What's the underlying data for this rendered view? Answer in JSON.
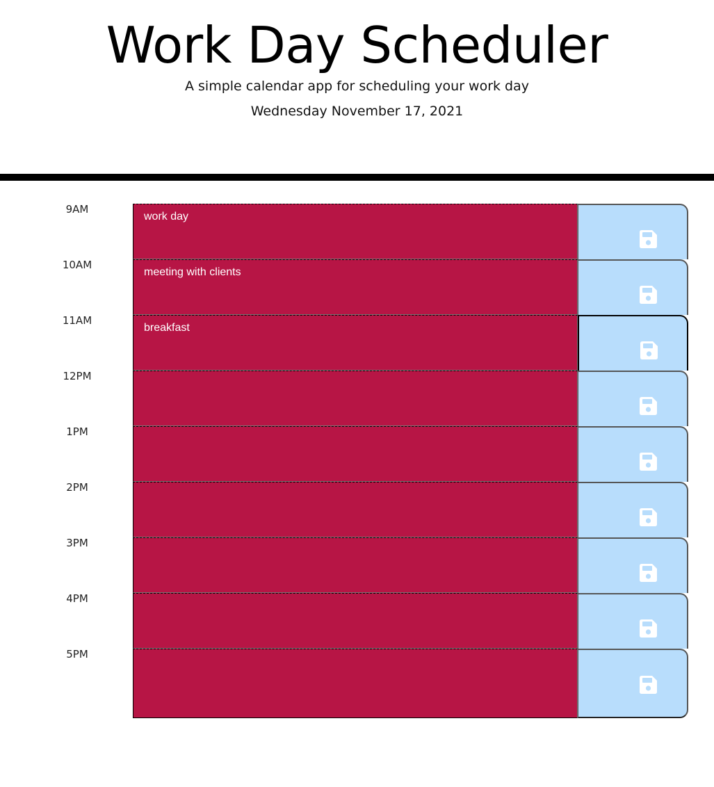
{
  "header": {
    "title": "Work Day Scheduler",
    "subtitle": "A simple calendar app for scheduling your work day",
    "current_day": "Wednesday November 17, 2021"
  },
  "schedule": {
    "blocks": [
      {
        "hour": "9AM",
        "text": "work day"
      },
      {
        "hour": "10AM",
        "text": "meeting with clients"
      },
      {
        "hour": "11AM",
        "text": "breakfast"
      },
      {
        "hour": "12PM",
        "text": ""
      },
      {
        "hour": "1PM",
        "text": ""
      },
      {
        "hour": "2PM",
        "text": ""
      },
      {
        "hour": "3PM",
        "text": ""
      },
      {
        "hour": "4PM",
        "text": ""
      },
      {
        "hour": "5PM",
        "text": ""
      }
    ]
  },
  "colors": {
    "past": "#b71545",
    "save_button": "#b8ddfc",
    "save_icon": "#ffffff"
  },
  "icons": {
    "save": "floppy-disk-icon"
  }
}
